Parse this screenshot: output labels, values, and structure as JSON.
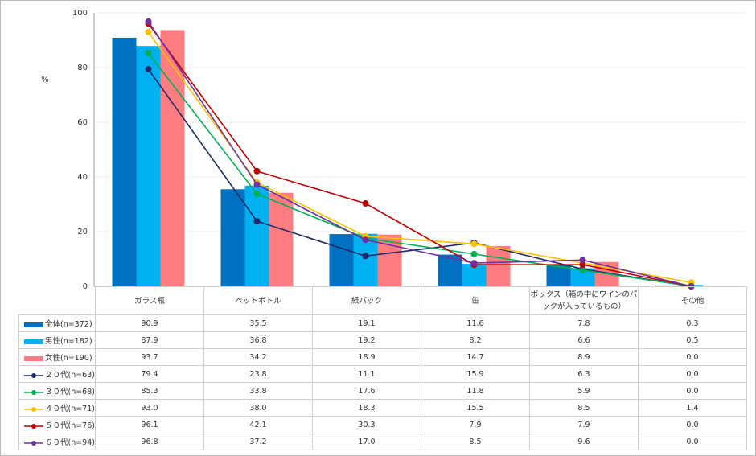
{
  "chart_data": {
    "type": "bar",
    "y_label": "%",
    "categories": [
      "ガラス瓶",
      "ペットボトル",
      "紙パック",
      "缶",
      "ボックス（箱の中にワインのパックが入っているもの）",
      "その他"
    ],
    "ylim": [
      0,
      100
    ],
    "yticks": [
      0,
      20,
      40,
      60,
      80,
      100
    ],
    "grid": true,
    "series": [
      {
        "name": "全体(n=372)",
        "type": "bar",
        "color": "#0070c0",
        "values": [
          90.9,
          35.5,
          19.1,
          11.6,
          7.8,
          0.3
        ],
        "value_labels": [
          "90.9",
          "35.5",
          "19.1",
          "11.6",
          "7.8",
          "0.3"
        ]
      },
      {
        "name": "男性(n=182)",
        "type": "bar",
        "color": "#00b0f0",
        "values": [
          87.9,
          36.8,
          19.2,
          8.2,
          6.6,
          0.5
        ],
        "value_labels": [
          "87.9",
          "36.8",
          "19.2",
          "8.2",
          "6.6",
          "0.5"
        ]
      },
      {
        "name": "女性(n=190)",
        "type": "bar",
        "color": "#ff7c80",
        "values": [
          93.7,
          34.2,
          18.9,
          14.7,
          8.9,
          0
        ],
        "value_labels": [
          "93.7",
          "34.2",
          "18.9",
          "14.7",
          "8.9",
          "0.0"
        ]
      },
      {
        "name": "２０代(n=63)",
        "type": "line",
        "color": "#1f2a6b",
        "values": [
          79.4,
          23.8,
          11.1,
          15.9,
          6.3,
          0
        ],
        "value_labels": [
          "79.4",
          "23.8",
          "11.1",
          "15.9",
          "6.3",
          "0.0"
        ]
      },
      {
        "name": "３０代(n=68)",
        "type": "line",
        "color": "#00b050",
        "values": [
          85.3,
          33.8,
          17.6,
          11.8,
          5.9,
          0
        ],
        "value_labels": [
          "85.3",
          "33.8",
          "17.6",
          "11.8",
          "5.9",
          "0.0"
        ]
      },
      {
        "name": "４０代(n=71)",
        "type": "line",
        "color": "#ffc000",
        "values": [
          93,
          38,
          18.3,
          15.5,
          8.5,
          1.4
        ],
        "value_labels": [
          "93.0",
          "38.0",
          "18.3",
          "15.5",
          "8.5",
          "1.4"
        ]
      },
      {
        "name": "５０代(n=76)",
        "type": "line",
        "color": "#c00000",
        "values": [
          96.1,
          42.1,
          30.3,
          7.9,
          7.9,
          0
        ],
        "value_labels": [
          "96.1",
          "42.1",
          "30.3",
          "7.9",
          "7.9",
          "0.0"
        ]
      },
      {
        "name": "６０代(n=94)",
        "type": "line",
        "color": "#7030a0",
        "values": [
          96.8,
          37.2,
          17,
          8.5,
          9.6,
          0
        ],
        "value_labels": [
          "96.8",
          "37.2",
          "17.0",
          "8.5",
          "9.6",
          "0.0"
        ]
      }
    ]
  }
}
